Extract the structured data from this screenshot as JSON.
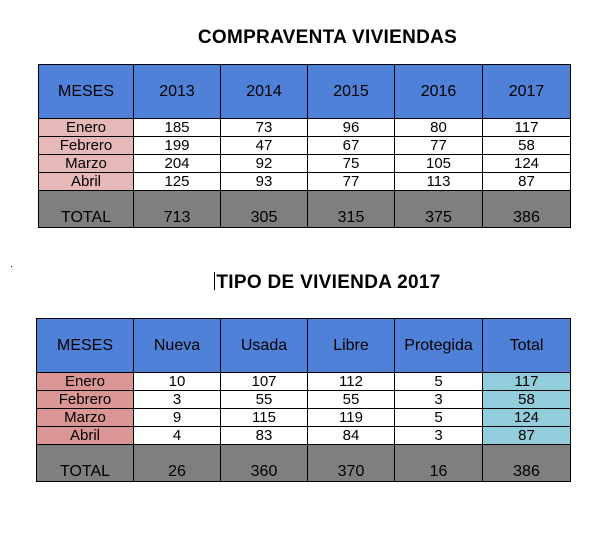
{
  "compraventa": {
    "title": "COMPRAVENTA  VIVIENDAS",
    "headers": [
      "MESES",
      "2013",
      "2014",
      "2015",
      "2016",
      "2017"
    ],
    "rows": [
      [
        "Enero",
        "185",
        "73",
        "96",
        "80",
        "117"
      ],
      [
        "Febrero",
        "199",
        "47",
        "67",
        "77",
        "58"
      ],
      [
        "Marzo",
        "204",
        "92",
        "75",
        "105",
        "124"
      ],
      [
        "Abril",
        "125",
        "93",
        "77",
        "113",
        "87"
      ]
    ],
    "total": [
      "TOTAL",
      "713",
      "305",
      "315",
      "375",
      "386"
    ]
  },
  "tipo": {
    "title": "TIPO DE VIVIENDA 2017",
    "headers": [
      "MESES",
      "Nueva",
      "Usada",
      "Libre",
      "Protegida",
      "Total"
    ],
    "rows": [
      [
        "Enero",
        "10",
        "107",
        "112",
        "5",
        "117"
      ],
      [
        "Febrero",
        "3",
        "55",
        "55",
        "3",
        "58"
      ],
      [
        "Marzo",
        "9",
        "115",
        "119",
        "5",
        "124"
      ],
      [
        "Abril",
        "4",
        "83",
        "84",
        "3",
        "87"
      ]
    ],
    "total": [
      "TOTAL",
      "26",
      "360",
      "370",
      "16",
      "386"
    ]
  },
  "colors": {
    "header": "#4e81d7",
    "total": "#7f7f7f",
    "month_light": "#e6b8b7",
    "month_dark": "#da9694",
    "total_column": "#92cddc"
  }
}
